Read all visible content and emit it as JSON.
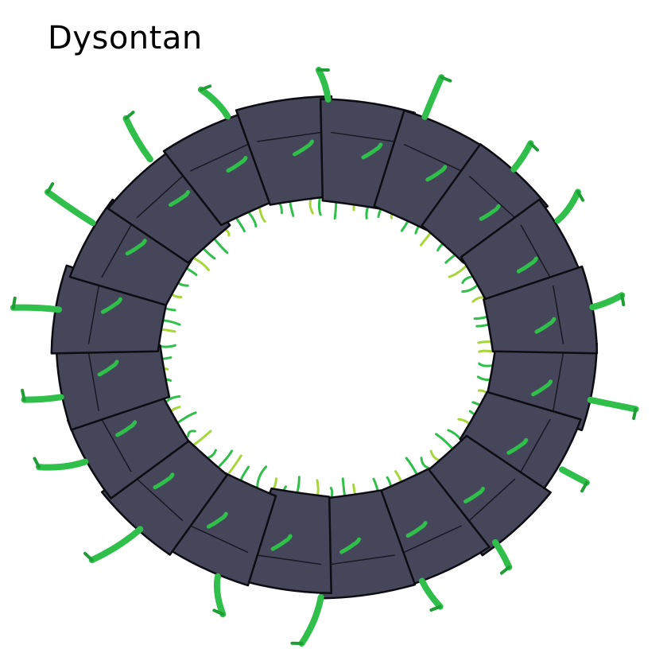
{
  "title": "Dysontan",
  "colors": {
    "ring_segment": "#45465a",
    "ring_outline": "#0c0c12",
    "vegetation": "#2fbf4a",
    "vegetation_dark": "#1e9e35",
    "vegetation_light": "#a6d63a",
    "background": "#ffffff"
  },
  "illustration": {
    "subject": "ring-world",
    "segment_count": 20
  }
}
